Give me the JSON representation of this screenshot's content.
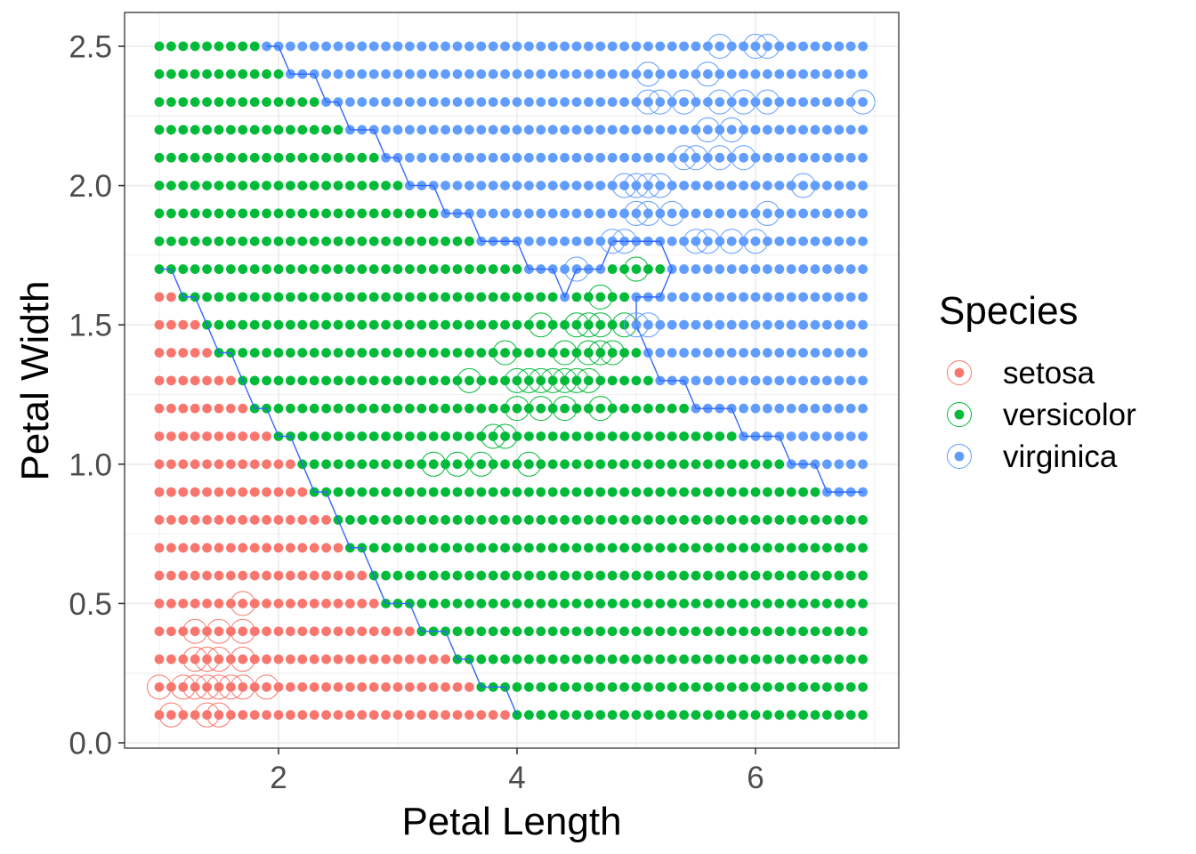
{
  "chart_data": {
    "type": "scatter",
    "title": "",
    "xlabel": "Petal Length",
    "ylabel": "Petal Width",
    "xlim": [
      0.855,
      7.045
    ],
    "ylim": [
      -0.02,
      2.62
    ],
    "x_ticks": [
      2,
      4,
      6
    ],
    "x_tick_labels": [
      "2",
      "4",
      "6"
    ],
    "y_ticks": [
      0.0,
      0.5,
      1.0,
      1.5,
      2.0,
      2.5
    ],
    "y_tick_labels": [
      "0.0",
      "0.5",
      "1.0",
      "1.5",
      "2.0",
      "2.5"
    ],
    "grid": true,
    "legend_position": "right",
    "legend": {
      "title": "Species",
      "entries": [
        {
          "label": "setosa",
          "color": "#F8766D"
        },
        {
          "label": "versicolor",
          "color": "#00BA38"
        },
        {
          "label": "virginica",
          "color": "#619CFF"
        }
      ]
    },
    "colors": {
      "setosa": "#F8766D",
      "versicolor": "#00BA38",
      "virginica": "#619CFF",
      "boundary": "#3366FF"
    },
    "prediction_grid": {
      "description": "Predicted class on a grid, x = 1.0..6.9 step 0.1, y = 0.1..2.5 step 0.1; runs are [x_from, x_to, species]",
      "x_start": 1.0,
      "x_end": 6.9,
      "x_step": 0.1,
      "rows": [
        {
          "y": 2.5,
          "runs": [
            [
              1.0,
              1.8,
              "versicolor"
            ],
            [
              1.9,
              6.9,
              "virginica"
            ]
          ]
        },
        {
          "y": 2.4,
          "runs": [
            [
              1.0,
              2.0,
              "versicolor"
            ],
            [
              2.1,
              6.9,
              "virginica"
            ]
          ]
        },
        {
          "y": 2.3,
          "runs": [
            [
              1.0,
              2.3,
              "versicolor"
            ],
            [
              2.4,
              6.9,
              "virginica"
            ]
          ]
        },
        {
          "y": 2.2,
          "runs": [
            [
              1.0,
              2.5,
              "versicolor"
            ],
            [
              2.6,
              6.9,
              "virginica"
            ]
          ]
        },
        {
          "y": 2.1,
          "runs": [
            [
              1.0,
              2.8,
              "versicolor"
            ],
            [
              2.9,
              6.9,
              "virginica"
            ]
          ]
        },
        {
          "y": 2.0,
          "runs": [
            [
              1.0,
              3.0,
              "versicolor"
            ],
            [
              3.1,
              6.9,
              "virginica"
            ]
          ]
        },
        {
          "y": 1.9,
          "runs": [
            [
              1.0,
              3.3,
              "versicolor"
            ],
            [
              3.4,
              6.9,
              "virginica"
            ]
          ]
        },
        {
          "y": 1.8,
          "runs": [
            [
              1.0,
              3.6,
              "versicolor"
            ],
            [
              3.7,
              6.9,
              "virginica"
            ]
          ]
        },
        {
          "y": 1.7,
          "runs": [
            [
              1.0,
              4.0,
              "versicolor"
            ],
            [
              4.1,
              4.7,
              "virginica"
            ],
            [
              4.8,
              5.2,
              "versicolor"
            ],
            [
              5.3,
              6.9,
              "virginica"
            ]
          ]
        },
        {
          "y": 1.6,
          "runs": [
            [
              1.0,
              1.1,
              "setosa"
            ],
            [
              1.2,
              4.3,
              "versicolor"
            ],
            [
              4.4,
              4.4,
              "virginica"
            ],
            [
              4.5,
              4.9,
              "versicolor"
            ],
            [
              5.0,
              6.9,
              "virginica"
            ]
          ]
        },
        {
          "y": 1.5,
          "runs": [
            [
              1.0,
              1.3,
              "setosa"
            ],
            [
              1.4,
              4.9,
              "versicolor"
            ],
            [
              5.0,
              6.9,
              "virginica"
            ]
          ]
        },
        {
          "y": 1.4,
          "runs": [
            [
              1.0,
              1.4,
              "setosa"
            ],
            [
              1.5,
              5.0,
              "versicolor"
            ],
            [
              5.1,
              6.9,
              "virginica"
            ]
          ]
        },
        {
          "y": 1.3,
          "runs": [
            [
              1.0,
              1.6,
              "setosa"
            ],
            [
              1.7,
              5.1,
              "versicolor"
            ],
            [
              5.2,
              6.9,
              "virginica"
            ]
          ]
        },
        {
          "y": 1.2,
          "runs": [
            [
              1.0,
              1.7,
              "setosa"
            ],
            [
              1.8,
              5.4,
              "versicolor"
            ],
            [
              5.5,
              6.9,
              "virginica"
            ]
          ]
        },
        {
          "y": 1.1,
          "runs": [
            [
              1.0,
              1.9,
              "setosa"
            ],
            [
              2.0,
              5.8,
              "versicolor"
            ],
            [
              5.9,
              6.9,
              "virginica"
            ]
          ]
        },
        {
          "y": 1.0,
          "runs": [
            [
              1.0,
              2.1,
              "setosa"
            ],
            [
              2.2,
              6.2,
              "versicolor"
            ],
            [
              6.3,
              6.9,
              "virginica"
            ]
          ]
        },
        {
          "y": 0.9,
          "runs": [
            [
              1.0,
              2.2,
              "setosa"
            ],
            [
              2.3,
              6.5,
              "versicolor"
            ],
            [
              6.6,
              6.9,
              "virginica"
            ]
          ]
        },
        {
          "y": 0.8,
          "runs": [
            [
              1.0,
              2.4,
              "setosa"
            ],
            [
              2.5,
              6.9,
              "versicolor"
            ]
          ]
        },
        {
          "y": 0.7,
          "runs": [
            [
              1.0,
              2.5,
              "setosa"
            ],
            [
              2.6,
              6.9,
              "versicolor"
            ]
          ]
        },
        {
          "y": 0.6,
          "runs": [
            [
              1.0,
              2.7,
              "setosa"
            ],
            [
              2.8,
              6.9,
              "versicolor"
            ]
          ]
        },
        {
          "y": 0.5,
          "runs": [
            [
              1.0,
              2.8,
              "setosa"
            ],
            [
              2.9,
              6.9,
              "versicolor"
            ]
          ]
        },
        {
          "y": 0.4,
          "runs": [
            [
              1.0,
              3.1,
              "setosa"
            ],
            [
              3.2,
              6.9,
              "versicolor"
            ]
          ]
        },
        {
          "y": 0.3,
          "runs": [
            [
              1.0,
              3.4,
              "setosa"
            ],
            [
              3.5,
              6.9,
              "versicolor"
            ]
          ]
        },
        {
          "y": 0.2,
          "runs": [
            [
              1.0,
              3.6,
              "setosa"
            ],
            [
              3.7,
              6.9,
              "versicolor"
            ]
          ]
        },
        {
          "y": 0.1,
          "runs": [
            [
              1.0,
              3.9,
              "setosa"
            ],
            [
              4.0,
              6.9,
              "versicolor"
            ]
          ]
        }
      ]
    },
    "training_points": {
      "setosa": [
        [
          1.7,
          0.5
        ],
        [
          1.3,
          0.4
        ],
        [
          1.5,
          0.4
        ],
        [
          1.7,
          0.4
        ],
        [
          1.3,
          0.3
        ],
        [
          1.4,
          0.3
        ],
        [
          1.5,
          0.3
        ],
        [
          1.7,
          0.3
        ],
        [
          1.0,
          0.2
        ],
        [
          1.2,
          0.2
        ],
        [
          1.3,
          0.2
        ],
        [
          1.4,
          0.2
        ],
        [
          1.5,
          0.2
        ],
        [
          1.6,
          0.2
        ],
        [
          1.7,
          0.2
        ],
        [
          1.9,
          0.2
        ],
        [
          1.1,
          0.1
        ],
        [
          1.4,
          0.1
        ],
        [
          1.5,
          0.1
        ]
      ],
      "versicolor": [
        [
          5.0,
          1.7
        ],
        [
          4.7,
          1.6
        ],
        [
          4.2,
          1.5
        ],
        [
          4.5,
          1.5
        ],
        [
          4.6,
          1.5
        ],
        [
          4.7,
          1.5
        ],
        [
          4.9,
          1.5
        ],
        [
          3.9,
          1.4
        ],
        [
          4.4,
          1.4
        ],
        [
          4.6,
          1.4
        ],
        [
          4.7,
          1.4
        ],
        [
          4.8,
          1.4
        ],
        [
          3.6,
          1.3
        ],
        [
          4.0,
          1.3
        ],
        [
          4.1,
          1.3
        ],
        [
          4.2,
          1.3
        ],
        [
          4.3,
          1.3
        ],
        [
          4.4,
          1.3
        ],
        [
          4.5,
          1.3
        ],
        [
          4.6,
          1.3
        ],
        [
          4.0,
          1.2
        ],
        [
          4.2,
          1.2
        ],
        [
          4.4,
          1.2
        ],
        [
          4.7,
          1.2
        ],
        [
          3.8,
          1.1
        ],
        [
          3.9,
          1.1
        ],
        [
          3.3,
          1.0
        ],
        [
          3.5,
          1.0
        ],
        [
          3.7,
          1.0
        ],
        [
          4.1,
          1.0
        ]
      ],
      "virginica": [
        [
          5.7,
          2.5
        ],
        [
          6.0,
          2.5
        ],
        [
          6.1,
          2.5
        ],
        [
          5.1,
          2.4
        ],
        [
          5.6,
          2.4
        ],
        [
          5.1,
          2.3
        ],
        [
          5.2,
          2.3
        ],
        [
          5.4,
          2.3
        ],
        [
          5.7,
          2.3
        ],
        [
          5.9,
          2.3
        ],
        [
          6.1,
          2.3
        ],
        [
          6.9,
          2.3
        ],
        [
          5.6,
          2.2
        ],
        [
          5.8,
          2.2
        ],
        [
          5.4,
          2.1
        ],
        [
          5.5,
          2.1
        ],
        [
          5.7,
          2.1
        ],
        [
          5.9,
          2.1
        ],
        [
          4.9,
          2.0
        ],
        [
          5.0,
          2.0
        ],
        [
          5.1,
          2.0
        ],
        [
          5.2,
          2.0
        ],
        [
          6.4,
          2.0
        ],
        [
          5.0,
          1.9
        ],
        [
          5.1,
          1.9
        ],
        [
          5.3,
          1.9
        ],
        [
          6.1,
          1.9
        ],
        [
          4.8,
          1.8
        ],
        [
          4.9,
          1.8
        ],
        [
          5.5,
          1.8
        ],
        [
          5.6,
          1.8
        ],
        [
          5.8,
          1.8
        ],
        [
          6.0,
          1.8
        ],
        [
          4.5,
          1.7
        ],
        [
          5.0,
          1.5
        ],
        [
          5.1,
          1.5
        ]
      ]
    },
    "boundary_lines": [
      {
        "name": "setosa-versicolor",
        "points": [
          [
            1.0,
            1.7
          ],
          [
            1.1,
            1.7
          ],
          [
            1.2,
            1.6
          ],
          [
            1.3,
            1.6
          ],
          [
            1.4,
            1.5
          ],
          [
            1.5,
            1.4
          ],
          [
            1.6,
            1.4
          ],
          [
            1.7,
            1.3
          ],
          [
            1.8,
            1.2
          ],
          [
            1.9,
            1.2
          ],
          [
            2.0,
            1.1
          ],
          [
            2.1,
            1.1
          ],
          [
            2.2,
            1.0
          ],
          [
            2.3,
            0.9
          ],
          [
            2.4,
            0.9
          ],
          [
            2.5,
            0.8
          ],
          [
            2.6,
            0.7
          ],
          [
            2.7,
            0.7
          ],
          [
            2.8,
            0.6
          ],
          [
            2.9,
            0.5
          ],
          [
            3.1,
            0.5
          ],
          [
            3.2,
            0.4
          ],
          [
            3.4,
            0.4
          ],
          [
            3.5,
            0.3
          ],
          [
            3.6,
            0.3
          ],
          [
            3.7,
            0.2
          ],
          [
            3.9,
            0.2
          ],
          [
            4.0,
            0.1
          ]
        ]
      },
      {
        "name": "versicolor-virginica",
        "points": [
          [
            1.9,
            2.5
          ],
          [
            2.0,
            2.5
          ],
          [
            2.1,
            2.4
          ],
          [
            2.3,
            2.4
          ],
          [
            2.4,
            2.3
          ],
          [
            2.5,
            2.3
          ],
          [
            2.6,
            2.2
          ],
          [
            2.8,
            2.2
          ],
          [
            2.9,
            2.1
          ],
          [
            3.0,
            2.1
          ],
          [
            3.1,
            2.0
          ],
          [
            3.3,
            2.0
          ],
          [
            3.4,
            1.9
          ],
          [
            3.6,
            1.9
          ],
          [
            3.7,
            1.8
          ],
          [
            4.0,
            1.8
          ],
          [
            4.1,
            1.7
          ],
          [
            4.3,
            1.7
          ],
          [
            4.4,
            1.6
          ],
          [
            4.5,
            1.7
          ],
          [
            4.7,
            1.7
          ],
          [
            4.8,
            1.8
          ],
          [
            5.2,
            1.8
          ],
          [
            5.3,
            1.7
          ],
          [
            5.2,
            1.6
          ],
          [
            5.0,
            1.6
          ],
          [
            5.0,
            1.5
          ],
          [
            5.1,
            1.4
          ],
          [
            5.2,
            1.3
          ],
          [
            5.4,
            1.3
          ],
          [
            5.5,
            1.2
          ],
          [
            5.8,
            1.2
          ],
          [
            5.9,
            1.1
          ],
          [
            6.2,
            1.1
          ],
          [
            6.3,
            1.0
          ],
          [
            6.5,
            1.0
          ],
          [
            6.6,
            0.9
          ],
          [
            6.9,
            0.9
          ]
        ]
      }
    ]
  }
}
